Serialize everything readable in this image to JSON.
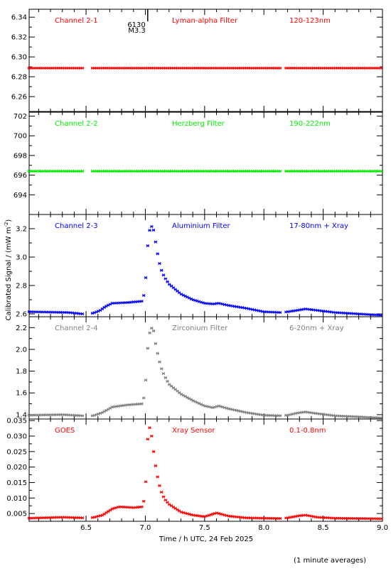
{
  "chart_data": {
    "type": "scatter",
    "xlabel": "Time / h UTC, 24 Feb 2025",
    "ylabel": "Calibrated Signal / (mW m",
    "ylabel_exp": "-2",
    "ylabel_end": ")",
    "xlim": [
      6.02,
      9.0
    ],
    "xticks": [
      6.5,
      7.0,
      7.5,
      8.0,
      8.5,
      9.0
    ],
    "xticklabels": [
      "6.5",
      "7.0",
      "7.5",
      "8.0",
      "8.5",
      "9.0"
    ],
    "footnote": "(1 minute averages)",
    "event_marker": {
      "x": 7.02,
      "label_top": "6130",
      "label_bottom": "M3.3"
    },
    "data_gaps": [
      [
        6.47,
        6.55
      ],
      [
        8.14,
        8.18
      ]
    ],
    "panels": [
      {
        "channel": "Channel 2-1",
        "filter": "Lyman-alpha Filter",
        "band": "120-123nm",
        "color": "#ff0000",
        "ylim": [
          6.245,
          6.348
        ],
        "yticks": [
          6.26,
          6.28,
          6.3,
          6.32,
          6.34
        ],
        "yticklabels": [
          "6.26",
          "6.28",
          "6.30",
          "6.32",
          "6.34"
        ],
        "profile": [
          [
            6.02,
            6.2887
          ],
          [
            9.0,
            6.2887
          ]
        ]
      },
      {
        "channel": "Channel 2-2",
        "filter": "Herzberg Filter",
        "band": "190-222nm",
        "color": "#00ee00",
        "ylim": [
          692.0,
          702.4
        ],
        "yticks": [
          694,
          696,
          698,
          700,
          702
        ],
        "yticklabels": [
          "694",
          "696",
          "698",
          "700",
          "702"
        ],
        "profile": [
          [
            6.02,
            696.4
          ],
          [
            9.0,
            696.4
          ]
        ]
      },
      {
        "channel": "Channel 2-3",
        "filter": "Aluminium Filter",
        "band": "17-80nm + Xray",
        "color": "#0000ff",
        "ylim": [
          2.58,
          3.3
        ],
        "yticks": [
          2.6,
          2.8,
          3.0,
          3.2
        ],
        "yticklabels": [
          "2.6",
          "2.8",
          "3.0",
          "3.2"
        ],
        "profile": [
          [
            6.02,
            2.615
          ],
          [
            6.35,
            2.61
          ],
          [
            6.47,
            2.6
          ],
          [
            6.56,
            2.605
          ],
          [
            6.62,
            2.625
          ],
          [
            6.66,
            2.65
          ],
          [
            6.72,
            2.675
          ],
          [
            6.85,
            2.68
          ],
          [
            6.98,
            2.69
          ],
          [
            7.0,
            2.81
          ],
          [
            7.02,
            3.08
          ],
          [
            7.04,
            3.21
          ],
          [
            7.05,
            3.22
          ],
          [
            7.07,
            3.19
          ],
          [
            7.09,
            3.09
          ],
          [
            7.11,
            2.99
          ],
          [
            7.13,
            2.92
          ],
          [
            7.16,
            2.86
          ],
          [
            7.2,
            2.81
          ],
          [
            7.3,
            2.74
          ],
          [
            7.4,
            2.7
          ],
          [
            7.5,
            2.675
          ],
          [
            7.57,
            2.67
          ],
          [
            7.62,
            2.675
          ],
          [
            7.7,
            2.66
          ],
          [
            7.85,
            2.64
          ],
          [
            8.0,
            2.615
          ],
          [
            8.14,
            2.61
          ],
          [
            8.2,
            2.615
          ],
          [
            8.28,
            2.625
          ],
          [
            8.35,
            2.635
          ],
          [
            8.45,
            2.625
          ],
          [
            8.6,
            2.61
          ],
          [
            8.8,
            2.6
          ],
          [
            9.0,
            2.59
          ]
        ]
      },
      {
        "channel": "Channel 2-4",
        "filter": "Zirconium Filter",
        "band": "6-20nm + Xray",
        "color": "#808080",
        "ylim": [
          1.36,
          2.3
        ],
        "yticks": [
          1.4,
          1.6,
          1.8,
          2.0,
          2.2
        ],
        "yticklabels": [
          "1.4",
          "1.6",
          "1.8",
          "2.0",
          "2.2"
        ],
        "profile": [
          [
            6.02,
            1.395
          ],
          [
            6.3,
            1.4
          ],
          [
            6.47,
            1.39
          ],
          [
            6.56,
            1.39
          ],
          [
            6.64,
            1.42
          ],
          [
            6.72,
            1.47
          ],
          [
            6.85,
            1.49
          ],
          [
            6.98,
            1.5
          ],
          [
            7.0,
            1.66
          ],
          [
            7.02,
            2.01
          ],
          [
            7.04,
            2.18
          ],
          [
            7.05,
            2.2
          ],
          [
            7.07,
            2.17
          ],
          [
            7.09,
            2.03
          ],
          [
            7.11,
            1.93
          ],
          [
            7.13,
            1.84
          ],
          [
            7.16,
            1.76
          ],
          [
            7.2,
            1.68
          ],
          [
            7.3,
            1.59
          ],
          [
            7.4,
            1.53
          ],
          [
            7.5,
            1.48
          ],
          [
            7.57,
            1.465
          ],
          [
            7.62,
            1.48
          ],
          [
            7.7,
            1.455
          ],
          [
            7.85,
            1.42
          ],
          [
            8.0,
            1.395
          ],
          [
            8.14,
            1.39
          ],
          [
            8.2,
            1.395
          ],
          [
            8.28,
            1.415
          ],
          [
            8.35,
            1.425
          ],
          [
            8.45,
            1.41
          ],
          [
            8.6,
            1.39
          ],
          [
            8.8,
            1.38
          ],
          [
            9.0,
            1.37
          ]
        ]
      },
      {
        "channel": "GOES",
        "filter": "Xray Sensor",
        "band": "0.1-0.8nm",
        "color": "#ff0000",
        "ylim": [
          0.0025,
          0.0355
        ],
        "yticks": [
          0.005,
          0.01,
          0.015,
          0.02,
          0.025,
          0.03,
          0.035
        ],
        "yticklabels": [
          "0.005",
          "0.010",
          "0.015",
          "0.020",
          "0.025",
          "0.030",
          "0.035"
        ],
        "profile": [
          [
            6.02,
            0.0035
          ],
          [
            6.3,
            0.0038
          ],
          [
            6.47,
            0.0036
          ],
          [
            6.56,
            0.0037
          ],
          [
            6.64,
            0.0045
          ],
          [
            6.72,
            0.0065
          ],
          [
            6.78,
            0.0072
          ],
          [
            6.9,
            0.0069
          ],
          [
            6.98,
            0.0072
          ],
          [
            7.0,
            0.0125
          ],
          [
            7.02,
            0.029
          ],
          [
            7.03,
            0.0335
          ],
          [
            7.05,
            0.031
          ],
          [
            7.07,
            0.025
          ],
          [
            7.09,
            0.0195
          ],
          [
            7.11,
            0.0155
          ],
          [
            7.13,
            0.0125
          ],
          [
            7.16,
            0.0098
          ],
          [
            7.2,
            0.008
          ],
          [
            7.3,
            0.0055
          ],
          [
            7.4,
            0.0045
          ],
          [
            7.5,
            0.004
          ],
          [
            7.6,
            0.0052
          ],
          [
            7.7,
            0.0042
          ],
          [
            7.85,
            0.0036
          ],
          [
            8.0,
            0.0035
          ],
          [
            8.14,
            0.0034
          ],
          [
            8.2,
            0.0036
          ],
          [
            8.3,
            0.0043
          ],
          [
            8.35,
            0.0045
          ],
          [
            8.45,
            0.0038
          ],
          [
            8.6,
            0.0035
          ],
          [
            9.0,
            0.0033
          ]
        ]
      }
    ]
  }
}
